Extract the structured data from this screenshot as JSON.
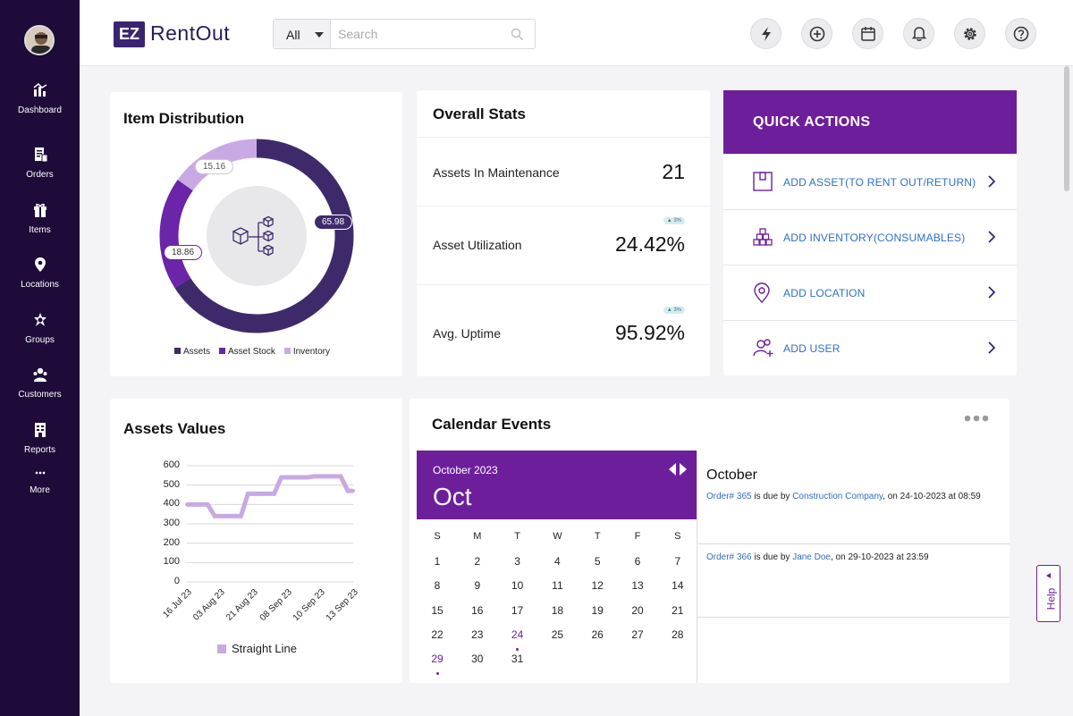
{
  "colors": {
    "sidebar": "#1e0b3a",
    "accent": "#6d1f9b",
    "assets": "#3e2a6b",
    "asset_stock": "#6b25a8",
    "inventory": "#c9a9e3",
    "link": "#2f6fc4"
  },
  "sidebar": {
    "items": [
      {
        "label": "Dashboard",
        "icon": "dashboard-icon"
      },
      {
        "label": "Orders",
        "icon": "orders-icon"
      },
      {
        "label": "Items",
        "icon": "items-icon"
      },
      {
        "label": "Locations",
        "icon": "location-pin-icon"
      },
      {
        "label": "Groups",
        "icon": "groups-icon"
      },
      {
        "label": "Customers",
        "icon": "customers-icon"
      },
      {
        "label": "Reports",
        "icon": "reports-icon"
      },
      {
        "label": "More",
        "icon": "more-dots-icon"
      }
    ]
  },
  "header": {
    "logo_mark": "EZ",
    "logo_text": "RentOut",
    "search": {
      "scope": "All",
      "placeholder": "Search"
    },
    "icons": [
      "lightning-icon",
      "add-circle-icon",
      "calendar-icon",
      "bell-icon",
      "gear-icon",
      "help-icon"
    ]
  },
  "item_distribution": {
    "title": "Item Distribution",
    "chart_data": {
      "type": "pie",
      "variant": "donut",
      "labels": [
        "Assets",
        "Asset Stock",
        "Inventory"
      ],
      "values": [
        65.98,
        18.86,
        15.16
      ],
      "legend_position": "bottom"
    },
    "labels": {
      "assets": "65.98",
      "asset_stock": "18.86",
      "inventory": "15.16"
    },
    "legend": [
      "Assets",
      "Asset Stock",
      "Inventory"
    ]
  },
  "overall_stats": {
    "title": "Overall Stats",
    "rows": [
      {
        "label": "Assets In Maintenance",
        "value": "21"
      },
      {
        "label": "Asset Utilization",
        "value": "24.42%",
        "badge": "▲ 3%"
      },
      {
        "label": "Avg. Uptime",
        "value": "95.92%",
        "badge": "▲ 3%"
      }
    ]
  },
  "quick_actions": {
    "title": "QUICK ACTIONS",
    "items": [
      {
        "label": "ADD ASSET(TO RENT OUT/RETURN)",
        "icon": "box-icon"
      },
      {
        "label": "ADD INVENTORY(CONSUMABLES)",
        "icon": "stacked-boxes-icon"
      },
      {
        "label": "ADD LOCATION",
        "icon": "location-pin-icon"
      },
      {
        "label": "ADD  USER",
        "icon": "add-user-icon"
      }
    ]
  },
  "assets_values": {
    "title": "Assets Values",
    "chart_data": {
      "type": "line",
      "series": [
        {
          "name": "Straight Line",
          "x": [
            "16 Jul 23",
            "03 Aug 23",
            "21 Aug 23",
            "08 Sep 23",
            "10 Sep 23",
            "13 Sep 23"
          ],
          "values": [
            400,
            340,
            455,
            540,
            545,
            470
          ]
        }
      ],
      "x_ticks": [
        "16 Jul 23",
        "03 Aug 23",
        "21 Aug 23",
        "08 Sep 23",
        "10 Sep 23",
        "13 Sep 23"
      ],
      "y_ticks": [
        0,
        100,
        200,
        300,
        400,
        500,
        600
      ],
      "ylim": [
        0,
        600
      ],
      "grid": true,
      "legend_position": "bottom"
    },
    "legend": "Straight Line"
  },
  "calendar": {
    "title": "Calendar Events",
    "month_year": "October 2023",
    "month_short": "Oct",
    "dow": [
      "S",
      "M",
      "T",
      "W",
      "T",
      "F",
      "S"
    ],
    "weeks": [
      [
        "1",
        "2",
        "3",
        "4",
        "5",
        "6",
        "7"
      ],
      [
        "8",
        "9",
        "10",
        "11",
        "12",
        "13",
        "14"
      ],
      [
        "15",
        "16",
        "17",
        "18",
        "19",
        "20",
        "21"
      ],
      [
        "22",
        "23",
        "24",
        "25",
        "26",
        "27",
        "28"
      ],
      [
        "29",
        "30",
        "31"
      ]
    ],
    "highlight_days": [
      "24",
      "29"
    ],
    "events_month": "October",
    "events": [
      {
        "order": "Order# 365",
        "mid": " is due by ",
        "who": "Construction Company",
        "tail": ", on 24-10-2023 at 08:59"
      },
      {
        "order": "Order# 366",
        "mid": " is due by ",
        "who": "Jane Doe",
        "tail": ", on 29-10-2023 at 23:59"
      }
    ]
  },
  "help_tab": "Help"
}
